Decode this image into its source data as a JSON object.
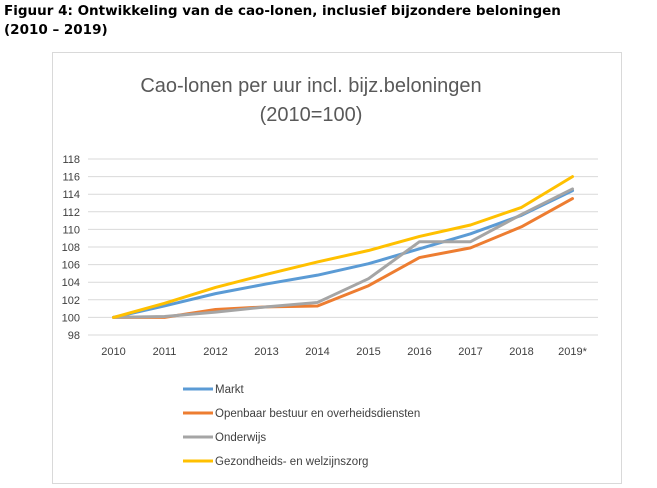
{
  "figure": {
    "title_line1": "Figuur 4: Ontwikkeling van de cao-lonen, inclusief bijzondere beloningen",
    "title_line2": "(2010 – 2019)"
  },
  "chart_data": {
    "type": "line",
    "title": "Cao-lonen per uur incl. bijz.beloningen",
    "subtitle": "(2010=100)",
    "xlabel": "",
    "ylabel": "",
    "categories": [
      "2010",
      "2011",
      "2012",
      "2013",
      "2014",
      "2015",
      "2016",
      "2017",
      "2018",
      "2019*"
    ],
    "ylim": [
      98,
      118
    ],
    "yticks": [
      98,
      100,
      102,
      104,
      106,
      108,
      110,
      112,
      114,
      116,
      118
    ],
    "grid": true,
    "legend_position": "bottom-left",
    "series": [
      {
        "name": "Markt",
        "color": "#5b9bd5",
        "values": [
          100,
          101.3,
          102.7,
          103.8,
          104.8,
          106.1,
          107.8,
          109.5,
          111.6,
          114.4
        ]
      },
      {
        "name": "Openbaar bestuur en overheidsdiensten",
        "color": "#ed7d31",
        "values": [
          100,
          100.0,
          100.9,
          101.2,
          101.3,
          103.6,
          106.8,
          107.9,
          110.3,
          113.5
        ]
      },
      {
        "name": "Onderwijs",
        "color": "#a5a5a5",
        "values": [
          100,
          100.1,
          100.6,
          101.2,
          101.7,
          104.4,
          108.6,
          108.6,
          111.7,
          114.6
        ]
      },
      {
        "name": "Gezondheids- en welzijnszorg",
        "color": "#ffc000",
        "values": [
          100,
          101.6,
          103.4,
          104.9,
          106.3,
          107.6,
          109.2,
          110.5,
          112.5,
          116.0
        ]
      }
    ]
  }
}
